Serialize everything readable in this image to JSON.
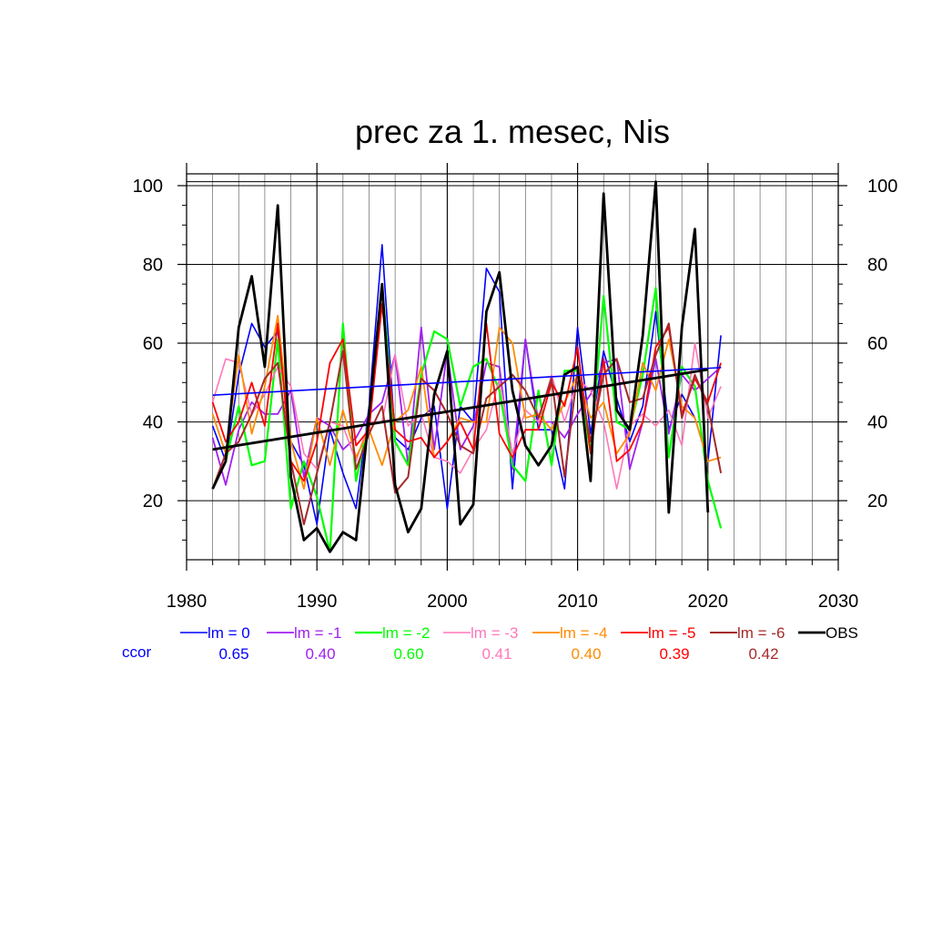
{
  "chart_data": {
    "type": "line",
    "title": "prec za 1. mesec, Nis",
    "x_range": [
      1980,
      2030
    ],
    "y_range": [
      5,
      103
    ],
    "x_ticks": [
      1980,
      1990,
      2000,
      2010,
      2020,
      2030
    ],
    "y_ticks": [
      20,
      40,
      60,
      80,
      100
    ],
    "grid": true,
    "x": [
      1982,
      1983,
      1984,
      1985,
      1986,
      1987,
      1988,
      1989,
      1990,
      1991,
      1992,
      1993,
      1994,
      1995,
      1996,
      1997,
      1998,
      1999,
      2000,
      2001,
      2002,
      2003,
      2004,
      2005,
      2006,
      2007,
      2008,
      2009,
      2010,
      2011,
      2012,
      2013,
      2014,
      2015,
      2016,
      2017,
      2018,
      2019,
      2020,
      2021
    ],
    "series": [
      {
        "name": "lm = 0",
        "color": "#0000ff",
        "width": 1.6,
        "values": [
          39,
          30,
          52,
          65,
          59,
          63,
          35,
          29,
          14,
          38,
          27,
          18,
          44,
          85,
          36,
          33,
          41,
          44,
          18,
          44,
          40,
          79,
          73,
          23,
          61,
          38,
          38,
          23,
          64,
          37,
          58,
          46,
          35,
          44,
          68,
          38,
          47,
          41,
          30,
          62
        ]
      },
      {
        "name": "lm = -1",
        "color": "#a020f0",
        "width": 1.8,
        "values": [
          36,
          24,
          38,
          45,
          42,
          42,
          48,
          26,
          41,
          39,
          33,
          36,
          42,
          45,
          57,
          29,
          64,
          33,
          58,
          33,
          39,
          55,
          54,
          28,
          61,
          40,
          40,
          36,
          42,
          47,
          55,
          56,
          28,
          40,
          56,
          37,
          52,
          48,
          51,
          54
        ]
      },
      {
        "name": "lm = -2",
        "color": "#00ff00",
        "width": 2.2,
        "values": [
          23,
          30,
          44,
          29,
          30,
          61,
          18,
          30,
          21,
          7,
          65,
          25,
          41,
          75,
          35,
          29,
          52,
          63,
          61,
          44,
          54,
          56,
          48,
          29,
          25,
          48,
          29,
          53,
          53,
          32,
          72,
          40,
          38,
          52,
          74,
          31,
          54,
          49,
          25,
          13
        ]
      },
      {
        "name": "lm = -3",
        "color": "#ff77bb",
        "width": 1.6,
        "values": [
          45,
          56,
          55,
          42,
          47,
          54,
          49,
          32,
          28,
          40,
          39,
          30,
          40,
          40,
          57,
          39,
          42,
          31,
          30,
          27,
          33,
          38,
          51,
          32,
          43,
          40,
          52,
          40,
          51,
          48,
          40,
          23,
          39,
          42,
          39,
          43,
          34,
          60,
          41,
          49
        ]
      },
      {
        "name": "lm = -4",
        "color": "#ff8c00",
        "width": 1.8,
        "values": [
          42,
          32,
          57,
          37,
          49,
          67,
          35,
          23,
          41,
          29,
          43,
          31,
          38,
          29,
          40,
          43,
          54,
          31,
          35,
          41,
          40,
          40,
          64,
          60,
          41,
          42,
          38,
          45,
          52,
          41,
          45,
          32,
          37,
          55,
          48,
          61,
          44,
          41,
          30,
          31
        ]
      },
      {
        "name": "lm = -5",
        "color": "#ff0000",
        "width": 1.8,
        "values": [
          45,
          35,
          40,
          50,
          39,
          65,
          30,
          25,
          35,
          55,
          61,
          34,
          38,
          70,
          38,
          35,
          36,
          31,
          35,
          40,
          33,
          65,
          37,
          31,
          38,
          38,
          50,
          44,
          59,
          32,
          56,
          30,
          33,
          40,
          59,
          64,
          42,
          51,
          45,
          55
        ]
      },
      {
        "name": "lm = -6",
        "color": "#a52a2a",
        "width": 2.0,
        "values": [
          23,
          32,
          35,
          42,
          51,
          55,
          30,
          14,
          27,
          40,
          58,
          28,
          37,
          44,
          22,
          26,
          51,
          48,
          42,
          34,
          32,
          46,
          49,
          52,
          48,
          41,
          51,
          26,
          53,
          35,
          52,
          56,
          45,
          46,
          57,
          65,
          41,
          52,
          44,
          27
        ]
      },
      {
        "name": "OBS",
        "color": "#000000",
        "width": 2.8,
        "values": [
          23,
          30,
          64,
          77,
          54,
          95,
          26,
          10,
          13,
          7,
          12,
          10,
          42,
          75,
          24,
          12,
          18,
          47,
          58,
          14,
          19,
          68,
          78,
          48,
          34,
          29,
          34,
          52,
          54,
          25,
          98,
          43,
          38,
          62,
          101,
          17,
          64,
          89,
          17,
          null
        ]
      }
    ],
    "trends": [
      {
        "series": "lm = 0",
        "color": "#0000ff",
        "width": 1.6,
        "x": [
          1982,
          2021
        ],
        "y": [
          46.8,
          53.8
        ]
      },
      {
        "series": "OBS",
        "color": "#000000",
        "width": 2.8,
        "x": [
          1982,
          2020
        ],
        "y": [
          33.0,
          53.3
        ]
      }
    ],
    "ccor_label": "ccor",
    "ccor_label_color": "#0000ff",
    "ccor_values": [
      "0.65",
      "0.40",
      "0.60",
      "0.41",
      "0.40",
      "0.39",
      "0.42"
    ]
  }
}
